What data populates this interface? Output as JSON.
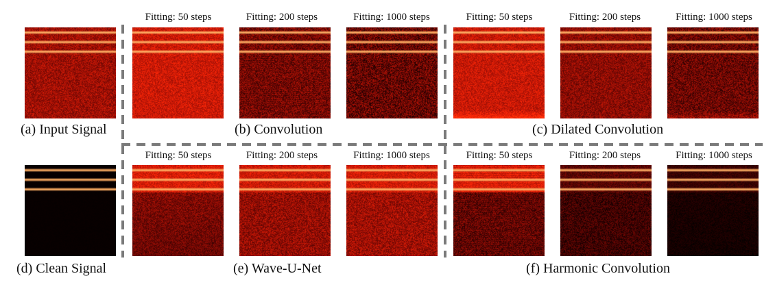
{
  "panels": [
    {
      "id": "a",
      "caption": "(a) Input Signal"
    },
    {
      "id": "b",
      "caption": "(b) Convolution"
    },
    {
      "id": "c",
      "caption": "(c) Dilated Convolution"
    },
    {
      "id": "d",
      "caption": "(d) Clean Signal"
    },
    {
      "id": "e",
      "caption": "(e) Wave-U-Net"
    },
    {
      "id": "f",
      "caption": "(f) Harmonic Convolution"
    }
  ],
  "step_labels": [
    "Fitting: 50 steps",
    "Fitting: 200 steps",
    "Fitting: 1000 steps"
  ],
  "colors": {
    "harmonic_line": "#ffb070",
    "noise_base": "#c01a08",
    "dark_background": "#0a0000",
    "divider": "#7a7a7a"
  }
}
